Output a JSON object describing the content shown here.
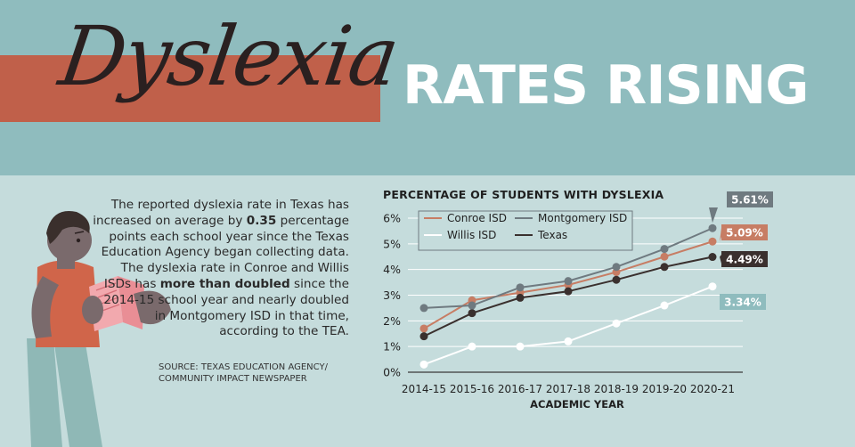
{
  "header": {
    "script_title": "Dyslexia",
    "title": "RATES RISING"
  },
  "body": {
    "para_1": "The reported dyslexia rate in Texas has increased on average by ",
    "para_2": "0.35",
    "para_3": " percentage points each school year since the Texas Education Agency began collecting data. The dyslexia rate in Conroe and Willis ISDs has ",
    "para_4": "more than doubled",
    "para_5": " since the 2014-15 school year and nearly doubled in Montgomery ISD in that time, according to the TEA.",
    "source_1": "SOURCE: TEXAS EDUCATION AGENCY/",
    "source_2": "COMMUNITY IMPACT NEWSPAPER"
  },
  "colors": {
    "conroe": "#c77d64",
    "montgomery": "#6f7a80",
    "willis": "#ffffff",
    "texas": "#3a302e",
    "willis_label_bg": "#8fbcbe"
  },
  "chart_data": {
    "type": "line",
    "title": "PERCENTAGE OF STUDENTS WITH DYSLEXIA",
    "xlabel": "ACADEMIC YEAR",
    "ylabel": "",
    "categories": [
      "2014-15",
      "2015-16",
      "2016-17",
      "2017-18",
      "2018-19",
      "2019-20",
      "2020-21"
    ],
    "y_ticks": [
      "0%",
      "1%",
      "2%",
      "3%",
      "4%",
      "5%",
      "6%"
    ],
    "ylim": [
      0,
      6
    ],
    "grid": true,
    "legend": "top-left",
    "series": [
      {
        "name": "Conroe ISD",
        "color_key": "conroe",
        "values": [
          1.7,
          2.8,
          3.1,
          3.4,
          3.9,
          4.5,
          5.09
        ],
        "end_label": "5.09%"
      },
      {
        "name": "Montgomery ISD",
        "color_key": "montgomery",
        "values": [
          2.5,
          2.6,
          3.3,
          3.55,
          4.1,
          4.8,
          5.61
        ],
        "end_label": "5.61%"
      },
      {
        "name": "Willis ISD",
        "color_key": "willis",
        "values": [
          0.3,
          1.0,
          1.0,
          1.2,
          1.9,
          2.6,
          3.34
        ],
        "end_label": "3.34%"
      },
      {
        "name": "Texas",
        "color_key": "texas",
        "values": [
          1.4,
          2.3,
          2.9,
          3.15,
          3.6,
          4.1,
          4.49
        ],
        "end_label": "4.49%"
      }
    ]
  }
}
